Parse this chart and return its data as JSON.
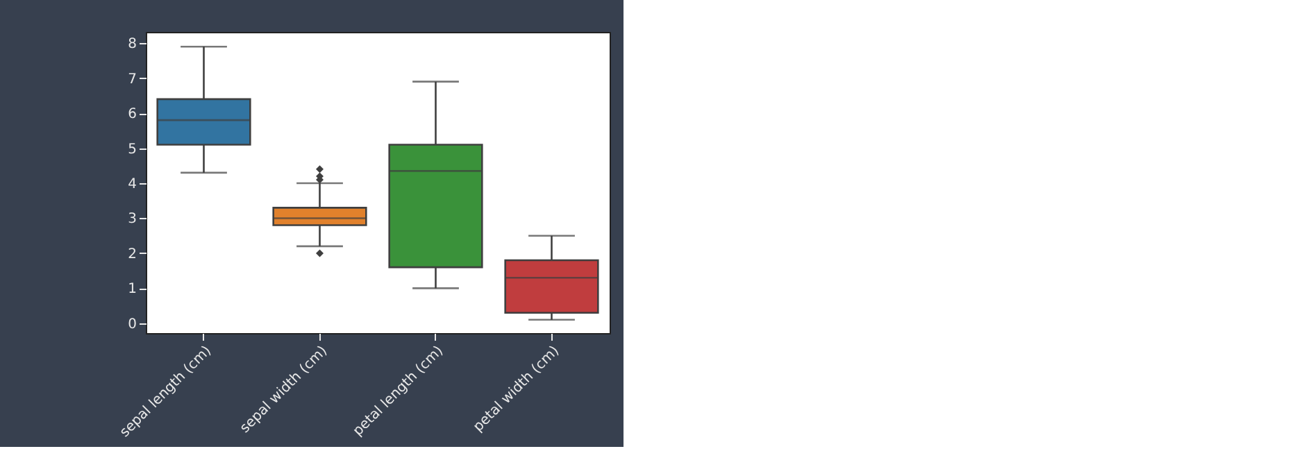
{
  "chart_data": {
    "type": "box",
    "categories": [
      "sepal length (cm)",
      "sepal width (cm)",
      "petal length (cm)",
      "petal width (cm)"
    ],
    "boxes": [
      {
        "low": 4.3,
        "q1": 5.1,
        "median": 5.8,
        "q3": 6.4,
        "high": 7.9
      },
      {
        "low": 2.2,
        "q1": 2.8,
        "median": 3.0,
        "q3": 3.3,
        "high": 4.0,
        "outliers": [
          4.4,
          4.1,
          4.2,
          2.0
        ]
      },
      {
        "low": 1.0,
        "q1": 1.6,
        "median": 4.35,
        "q3": 5.1,
        "high": 6.9
      },
      {
        "low": 0.1,
        "q1": 0.3,
        "median": 1.3,
        "q3": 1.8,
        "high": 2.5
      }
    ],
    "colors": [
      "#3274a1",
      "#e1812c",
      "#3a923a",
      "#c03d3e"
    ],
    "ylim": [
      -0.28,
      8.32
    ],
    "yticks": [
      0,
      1,
      2,
      3,
      4,
      5,
      6,
      7,
      8
    ],
    "grid": false,
    "marker": "diamond"
  }
}
